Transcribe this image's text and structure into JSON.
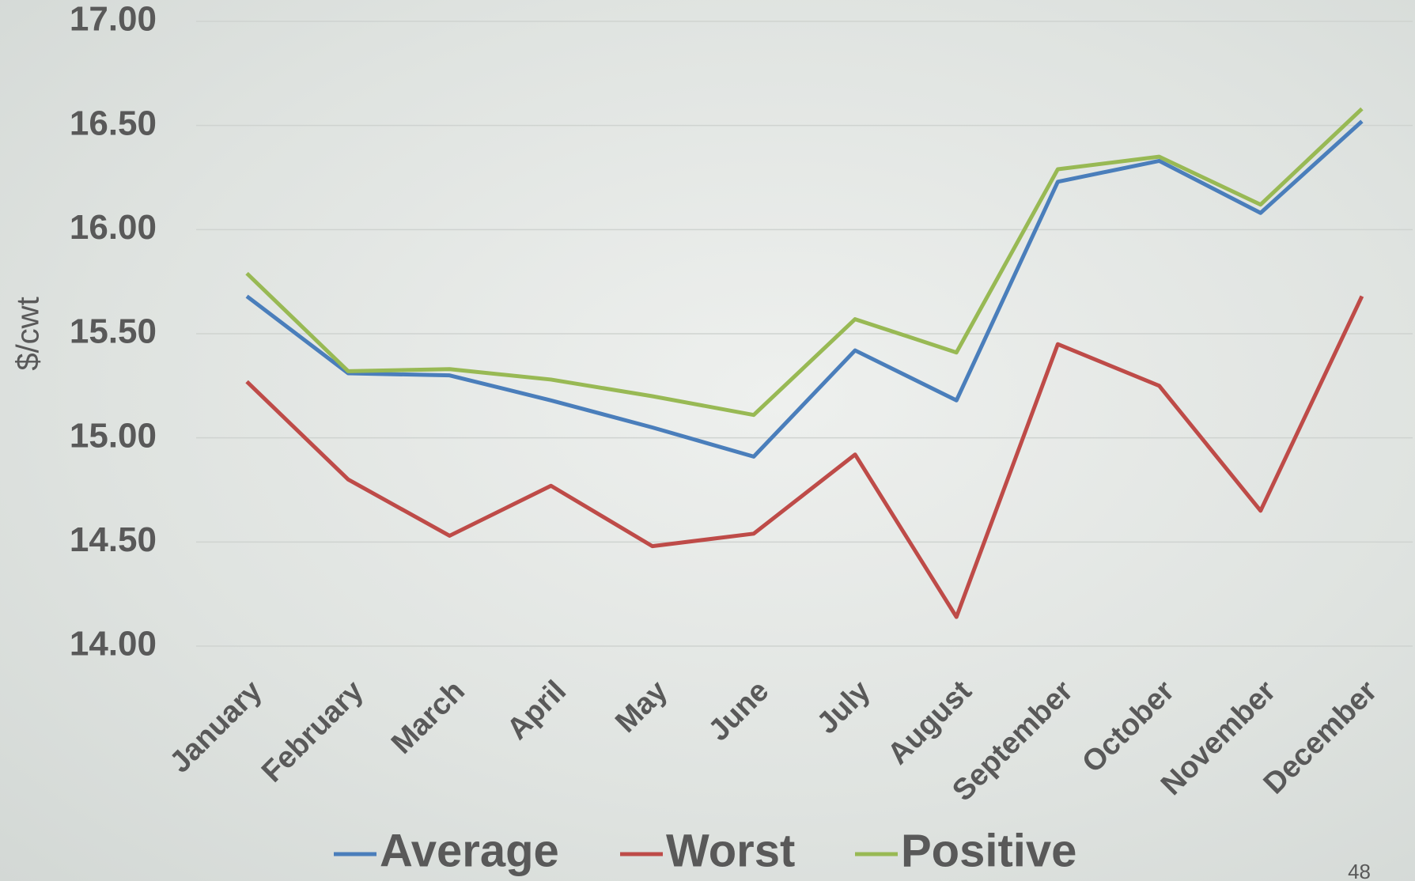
{
  "chart_data": {
    "type": "line",
    "y_label": "$/cwt",
    "page_number": "48",
    "categories": [
      "January",
      "February",
      "March",
      "April",
      "May",
      "June",
      "July",
      "August",
      "September",
      "October",
      "November",
      "December"
    ],
    "series": [
      {
        "name": "Average",
        "color": "#4a7ebb",
        "values": [
          15.68,
          15.31,
          15.3,
          15.18,
          15.05,
          14.91,
          15.42,
          15.18,
          16.23,
          16.33,
          16.08,
          16.52
        ]
      },
      {
        "name": "Worst",
        "color": "#be4b48",
        "values": [
          15.27,
          14.8,
          14.53,
          14.77,
          14.48,
          14.54,
          14.92,
          14.14,
          15.45,
          15.25,
          14.65,
          15.68
        ]
      },
      {
        "name": "Positive",
        "color": "#98b954",
        "values": [
          15.79,
          15.32,
          15.33,
          15.28,
          15.2,
          15.11,
          15.57,
          15.41,
          16.29,
          16.35,
          16.12,
          16.58
        ]
      }
    ],
    "ylim": [
      14,
      17
    ],
    "yticks": [
      {
        "value": 14,
        "label": "14.00"
      },
      {
        "value": 14.5,
        "label": "14.50"
      },
      {
        "value": 15,
        "label": "15.00"
      },
      {
        "value": 15.5,
        "label": "15.50"
      },
      {
        "value": 16,
        "label": "16.00"
      },
      {
        "value": 16.5,
        "label": "16.50"
      },
      {
        "value": 17,
        "label": "17.00"
      }
    ],
    "grid": true
  }
}
